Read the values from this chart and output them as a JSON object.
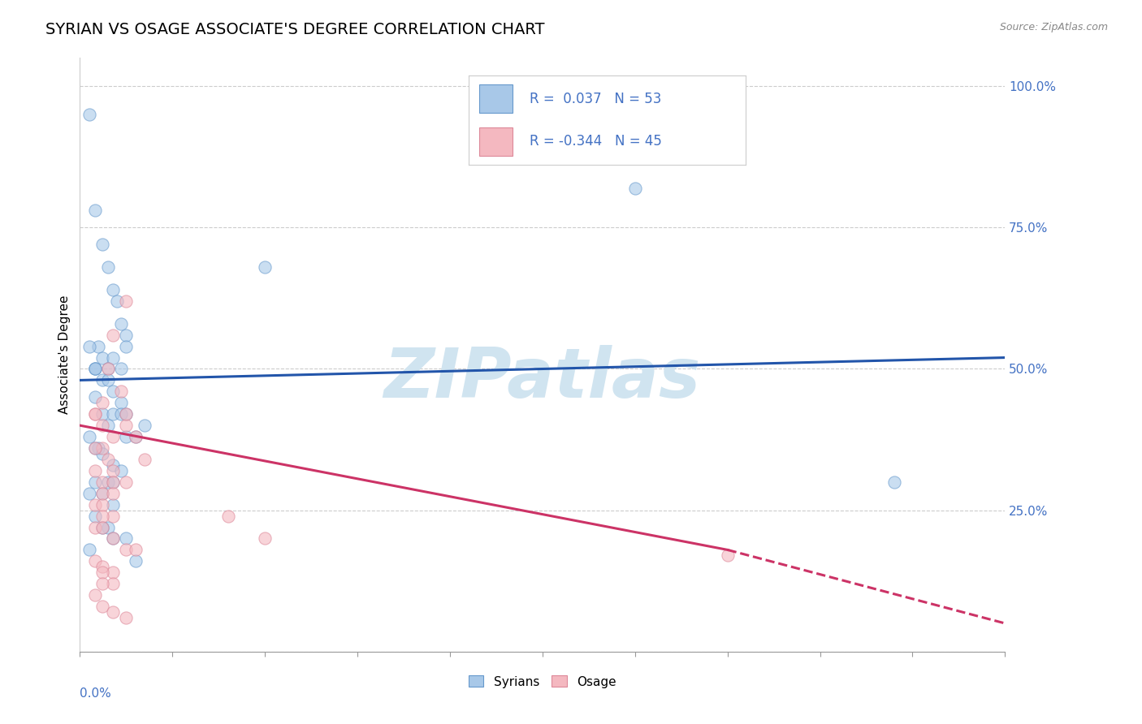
{
  "title": "SYRIAN VS OSAGE ASSOCIATE'S DEGREE CORRELATION CHART",
  "source": "Source: ZipAtlas.com",
  "ylabel": "Associate's Degree",
  "xlim": [
    0.0,
    0.5
  ],
  "ylim": [
    0.0,
    1.05
  ],
  "yticks": [
    0.0,
    0.25,
    0.5,
    0.75,
    1.0
  ],
  "ytick_labels": [
    "",
    "25.0%",
    "50.0%",
    "75.0%",
    "100.0%"
  ],
  "blue_color": "#a8c8e8",
  "blue_edge_color": "#6699cc",
  "pink_color": "#f4b8c0",
  "pink_edge_color": "#dd8899",
  "blue_line_color": "#2255aa",
  "pink_line_color": "#cc3366",
  "watermark": "ZIPatlas",
  "watermark_color": "#d0e4f0",
  "background_color": "#ffffff",
  "grid_color": "#cccccc",
  "text_color": "#4472c4",
  "legend_box_color": "#f0f4ff",
  "syrians_x": [
    0.005,
    0.008,
    0.012,
    0.015,
    0.018,
    0.02,
    0.022,
    0.025,
    0.01,
    0.012,
    0.008,
    0.015,
    0.018,
    0.022,
    0.012,
    0.008,
    0.015,
    0.018,
    0.022,
    0.005,
    0.012,
    0.018,
    0.008,
    0.015,
    0.022,
    0.008,
    0.025,
    0.03,
    0.035,
    0.005,
    0.01,
    0.008,
    0.012,
    0.018,
    0.022,
    0.015,
    0.008,
    0.018,
    0.025,
    0.005,
    0.012,
    0.018,
    0.008,
    0.015,
    0.1,
    0.3,
    0.012,
    0.018,
    0.025,
    0.005,
    0.44,
    0.025,
    0.03
  ],
  "syrians_y": [
    0.95,
    0.78,
    0.72,
    0.68,
    0.64,
    0.62,
    0.58,
    0.56,
    0.54,
    0.52,
    0.5,
    0.5,
    0.52,
    0.5,
    0.48,
    0.5,
    0.48,
    0.46,
    0.44,
    0.54,
    0.42,
    0.42,
    0.45,
    0.4,
    0.42,
    0.5,
    0.38,
    0.38,
    0.4,
    0.38,
    0.36,
    0.36,
    0.35,
    0.33,
    0.32,
    0.3,
    0.3,
    0.3,
    0.42,
    0.28,
    0.28,
    0.26,
    0.24,
    0.22,
    0.68,
    0.82,
    0.22,
    0.2,
    0.2,
    0.18,
    0.3,
    0.54,
    0.16
  ],
  "osage_x": [
    0.008,
    0.012,
    0.018,
    0.015,
    0.022,
    0.008,
    0.012,
    0.018,
    0.025,
    0.012,
    0.008,
    0.015,
    0.018,
    0.008,
    0.012,
    0.018,
    0.025,
    0.012,
    0.018,
    0.008,
    0.012,
    0.018,
    0.012,
    0.008,
    0.012,
    0.025,
    0.03,
    0.035,
    0.08,
    0.1,
    0.018,
    0.025,
    0.03,
    0.008,
    0.012,
    0.018,
    0.012,
    0.018,
    0.025,
    0.012,
    0.008,
    0.012,
    0.35,
    0.018,
    0.025
  ],
  "osage_y": [
    0.42,
    0.44,
    0.56,
    0.5,
    0.46,
    0.42,
    0.4,
    0.38,
    0.62,
    0.36,
    0.36,
    0.34,
    0.32,
    0.32,
    0.3,
    0.3,
    0.3,
    0.28,
    0.28,
    0.26,
    0.26,
    0.24,
    0.24,
    0.22,
    0.22,
    0.4,
    0.38,
    0.34,
    0.24,
    0.2,
    0.2,
    0.18,
    0.18,
    0.16,
    0.15,
    0.14,
    0.14,
    0.12,
    0.42,
    0.12,
    0.1,
    0.08,
    0.17,
    0.07,
    0.06
  ],
  "title_fontsize": 14,
  "axis_label_fontsize": 11,
  "tick_fontsize": 11,
  "legend_fontsize": 12,
  "dot_size": 120,
  "dot_alpha": 0.6
}
